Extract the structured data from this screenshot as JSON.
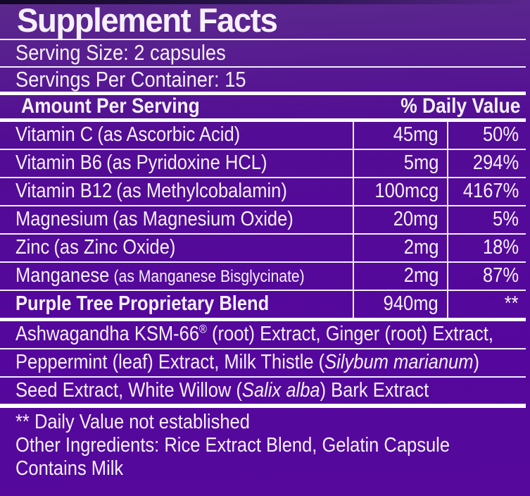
{
  "colors": {
    "background": "#55079d",
    "background_top": "#5b2a8c",
    "text": "#f5f0fa",
    "rule_thin": "#f3edfb",
    "rule_thick": "#ffffff",
    "top_edge": "#130826"
  },
  "label": {
    "title": "Supplement Facts",
    "serving_size": "Serving Size: 2 capsules",
    "servings_per_container": "Servings Per Container: 15",
    "columns": {
      "amount_header": "Amount Per Serving",
      "dv_header": "% Daily Value"
    },
    "nutrients": [
      {
        "name": "Vitamin C",
        "detail": "(as Ascorbic Acid)",
        "amount": "45mg",
        "dv": "50%"
      },
      {
        "name": "Vitamin B6",
        "detail": "(as Pyridoxine HCL)",
        "amount": "5mg",
        "dv": "294%"
      },
      {
        "name": "Vitamin B12",
        "detail": "(as Methylcobalamin)",
        "amount": "100mcg",
        "dv": "4167%"
      },
      {
        "name": "Magnesium",
        "detail": "(as Magnesium Oxide)",
        "amount": "20mg",
        "dv": "5%"
      },
      {
        "name": "Zinc",
        "detail": "(as Zinc Oxide)",
        "amount": "2mg",
        "dv": "18%"
      },
      {
        "name": "Manganese",
        "detail": "(as Manganese Bisglycinate)",
        "amount": "2mg",
        "dv": "87%"
      },
      {
        "name": "Purple Tree Proprietary Blend",
        "detail": "",
        "amount": "940mg",
        "dv": "**"
      }
    ],
    "blend": {
      "line1": {
        "pre": "Ashwagandha KSM-66",
        "sup": "®",
        "post": " (root) Extract, Ginger (root) Extract,"
      },
      "line2": {
        "pre": "Peppermint (leaf) Extract, Milk Thistle (",
        "italic": "Silybum marianum",
        "post": ")"
      },
      "line3": {
        "pre": "Seed Extract, White Willow (",
        "italic": "Salix alba",
        "post": ") Bark Extract"
      }
    },
    "footnotes": {
      "daily_value": "** Daily Value not established",
      "other_ingredients": "Other Ingredients: Rice Extract Blend, Gelatin Capsule",
      "contains": "Contains Milk"
    }
  }
}
